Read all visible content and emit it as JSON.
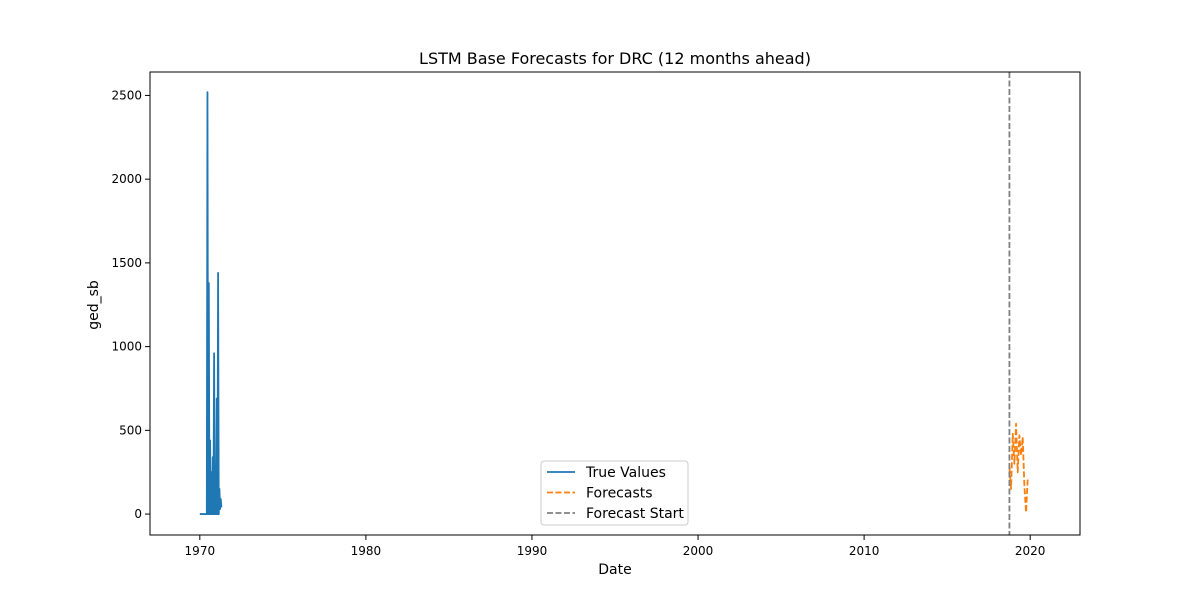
{
  "chart_data": {
    "type": "line",
    "title": "LSTM Base Forecasts for DRC (12 months ahead)",
    "xlabel": "Date",
    "ylabel": "ged_sb",
    "xlim": [
      1967.0,
      2023.0
    ],
    "ylim": [
      -125,
      2640
    ],
    "xticks": [
      1970,
      1980,
      1990,
      2000,
      2010,
      2020
    ],
    "yticks": [
      0,
      500,
      1000,
      1500,
      2000,
      2500
    ],
    "grid": false,
    "legend_position": "lower center",
    "forecast_start": 2018.75,
    "series": [
      {
        "name": "True Values",
        "color": "#1f77b4",
        "style": "solid",
        "x": [
          1970.0,
          1970.25,
          1970.33,
          1970.42,
          1970.46,
          1970.5,
          1970.54,
          1970.58,
          1970.62,
          1970.66,
          1970.7,
          1970.74,
          1970.78,
          1970.82,
          1970.86,
          1970.9,
          1970.94,
          1970.98,
          1971.02,
          1971.06,
          1971.1,
          1971.14,
          1971.18,
          1971.22,
          1971.26,
          1971.3
        ],
        "y": [
          0,
          0,
          0,
          0,
          2520,
          0,
          1380,
          0,
          440,
          0,
          250,
          0,
          340,
          0,
          960,
          0,
          120,
          0,
          690,
          0,
          1440,
          0,
          150,
          30,
          90,
          40
        ]
      },
      {
        "name": "Forecasts",
        "color": "#ff7f0e",
        "style": "dashed",
        "x": [
          2018.75,
          2018.85,
          2018.95,
          2019.05,
          2019.15,
          2019.25,
          2019.35,
          2019.45,
          2019.55,
          2019.65,
          2019.75,
          2019.85
        ],
        "y": [
          280,
          150,
          480,
          300,
          540,
          250,
          470,
          350,
          460,
          170,
          10,
          210
        ]
      }
    ],
    "vlines": [
      {
        "name": "Forecast Start",
        "color": "#808080",
        "style": "dashed",
        "x": 2018.75
      }
    ]
  }
}
